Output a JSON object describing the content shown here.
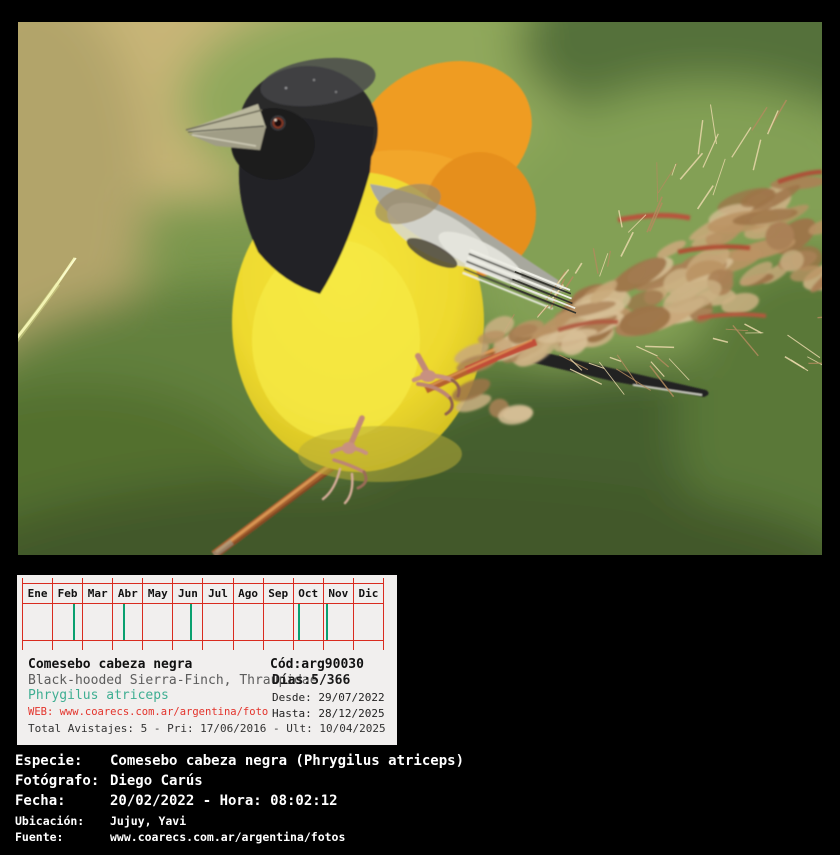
{
  "colors": {
    "grid_red": "#d92b1f",
    "tick_green": "#0aa06f",
    "sci_teal": "#3fae92",
    "web_red": "#e3332b",
    "card_bg": "#f1efee",
    "page_bg": "#000000"
  },
  "calendar": {
    "months": [
      {
        "label": "Ene"
      },
      {
        "label": "Feb",
        "tick": 0.68
      },
      {
        "label": "Mar"
      },
      {
        "label": "Abr",
        "tick": 0.34
      },
      {
        "label": "May"
      },
      {
        "label": "Jun",
        "tick": 0.57
      },
      {
        "label": "Jul"
      },
      {
        "label": "Ago"
      },
      {
        "label": "Sep"
      },
      {
        "label": "Oct",
        "tick": 0.16
      },
      {
        "label": "Nov",
        "tick": 0.07
      },
      {
        "label": "Dic"
      }
    ]
  },
  "card": {
    "common_name": "Comesebo cabeza negra",
    "code": "Cód:arg90030",
    "english_name": "Black-hooded Sierra-Finch, Thraupidae",
    "days": "Días:5/366",
    "scientific_name": "Phrygilus atriceps",
    "desde": "Desde: 29/07/2022",
    "web": "WEB: www.coarecs.com.ar/argentina/foto",
    "hasta": "Hasta: 28/12/2025",
    "totals": "Total Avistajes: 5 - Pri: 17/06/2016 - Ult: 10/04/2025"
  },
  "details": {
    "rows": [
      {
        "label": "Especie:",
        "value": "Comesebo cabeza negra (Phrygilus atriceps)",
        "size": "large"
      },
      {
        "label": "Fotógrafo:",
        "value": "Diego Carús",
        "size": "large"
      },
      {
        "label": "Fecha:",
        "value": "20/02/2022 - Hora: 08:02:12",
        "size": "large"
      },
      {
        "label": "Ubicación:",
        "value": "Jujuy, Yavi",
        "size": "small"
      },
      {
        "label": "Fuente:",
        "value": "www.coarecs.com.ar/argentina/fotos",
        "size": "small"
      }
    ]
  }
}
